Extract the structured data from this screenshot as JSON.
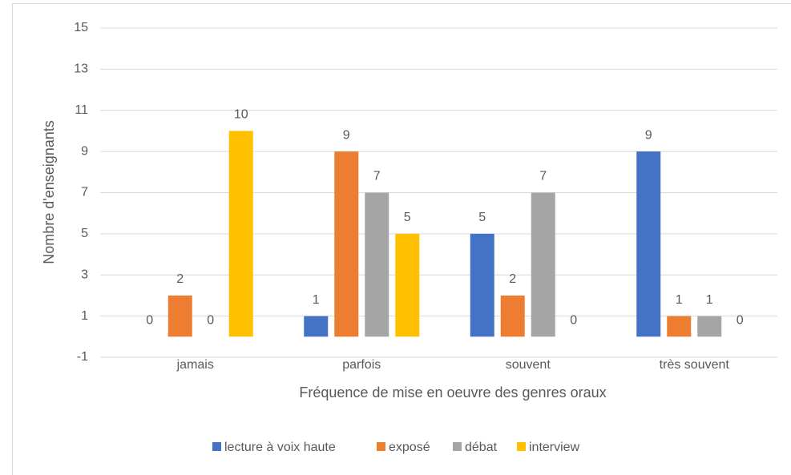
{
  "chart_data": {
    "type": "bar",
    "x_label": "Fréquence de mise en oeuvre des genres oraux",
    "y_label": "Nombre d'enseignants",
    "categories": [
      "jamais",
      "parfois",
      "souvent",
      "très souvent"
    ],
    "series": [
      {
        "name": "lecture à voix haute",
        "color": "#4472c4",
        "values": [
          0,
          1,
          5,
          9
        ]
      },
      {
        "name": "exposé",
        "color": "#ed7d31",
        "values": [
          2,
          9,
          2,
          1
        ]
      },
      {
        "name": "débat",
        "color": "#a5a5a5",
        "values": [
          0,
          7,
          7,
          1
        ]
      },
      {
        "name": "interview",
        "color": "#ffc000",
        "values": [
          10,
          5,
          0,
          0
        ]
      }
    ],
    "ylim": [
      -1,
      15
    ],
    "yticks": [
      -1,
      1,
      3,
      5,
      7,
      9,
      11,
      13,
      15
    ],
    "grid": true,
    "legend": "bottom"
  }
}
